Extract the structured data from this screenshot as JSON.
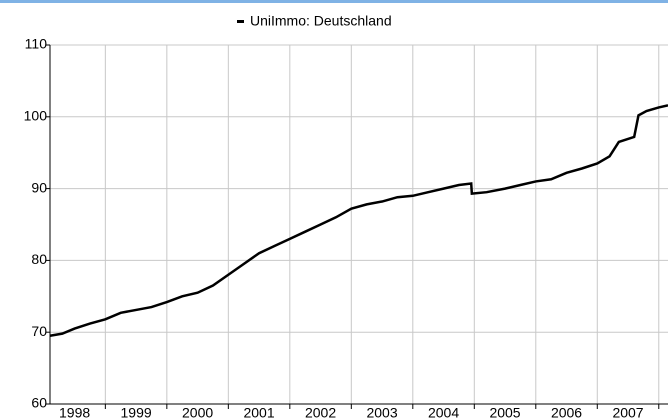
{
  "chart_data": {
    "type": "line",
    "series": [
      {
        "name": "UniImmo: Deutschland",
        "color": "#000000",
        "x": [
          1998.1,
          1998.3,
          1998.5,
          1998.75,
          1999.0,
          1999.25,
          1999.5,
          1999.75,
          2000.0,
          2000.25,
          2000.5,
          2000.75,
          2001.0,
          2001.25,
          2001.5,
          2001.75,
          2002.0,
          2002.25,
          2002.5,
          2002.75,
          2003.0,
          2003.25,
          2003.5,
          2003.75,
          2004.0,
          2004.25,
          2004.5,
          2004.75,
          2004.95,
          2004.96,
          2005.2,
          2005.5,
          2005.75,
          2006.0,
          2006.25,
          2006.5,
          2006.75,
          2007.0,
          2007.2,
          2007.35,
          2007.6,
          2007.67,
          2007.8,
          2008.0,
          2008.15
        ],
        "values": [
          69.5,
          69.8,
          70.5,
          71.2,
          71.8,
          72.7,
          73.1,
          73.5,
          74.2,
          75.0,
          75.5,
          76.5,
          78.0,
          79.5,
          81.0,
          82.0,
          83.0,
          84.0,
          85.0,
          86.0,
          87.2,
          87.8,
          88.2,
          88.8,
          89.0,
          89.5,
          90.0,
          90.5,
          90.7,
          89.3,
          89.5,
          90.0,
          90.5,
          91.0,
          91.3,
          92.2,
          92.8,
          93.5,
          94.5,
          96.5,
          97.2,
          100.2,
          100.8,
          101.3,
          101.6
        ]
      }
    ],
    "xlim": [
      1998.1,
      2008.15
    ],
    "xticks": [
      {
        "value": 1998.5,
        "label": "1998"
      },
      {
        "value": 1999.5,
        "label": "1999"
      },
      {
        "value": 2000.5,
        "label": "2000"
      },
      {
        "value": 2001.5,
        "label": "2001"
      },
      {
        "value": 2002.5,
        "label": "2002"
      },
      {
        "value": 2003.5,
        "label": "2003"
      },
      {
        "value": 2004.5,
        "label": "2004"
      },
      {
        "value": 2005.5,
        "label": "2005"
      },
      {
        "value": 2006.5,
        "label": "2006"
      },
      {
        "value": 2007.5,
        "label": "2007"
      }
    ],
    "xgrid": [
      1999,
      2000,
      2001,
      2002,
      2003,
      2004,
      2005,
      2006,
      2007,
      2008
    ],
    "ylim": [
      60,
      110
    ],
    "yticks": [
      60,
      70,
      80,
      90,
      100,
      110
    ],
    "grid": true
  }
}
